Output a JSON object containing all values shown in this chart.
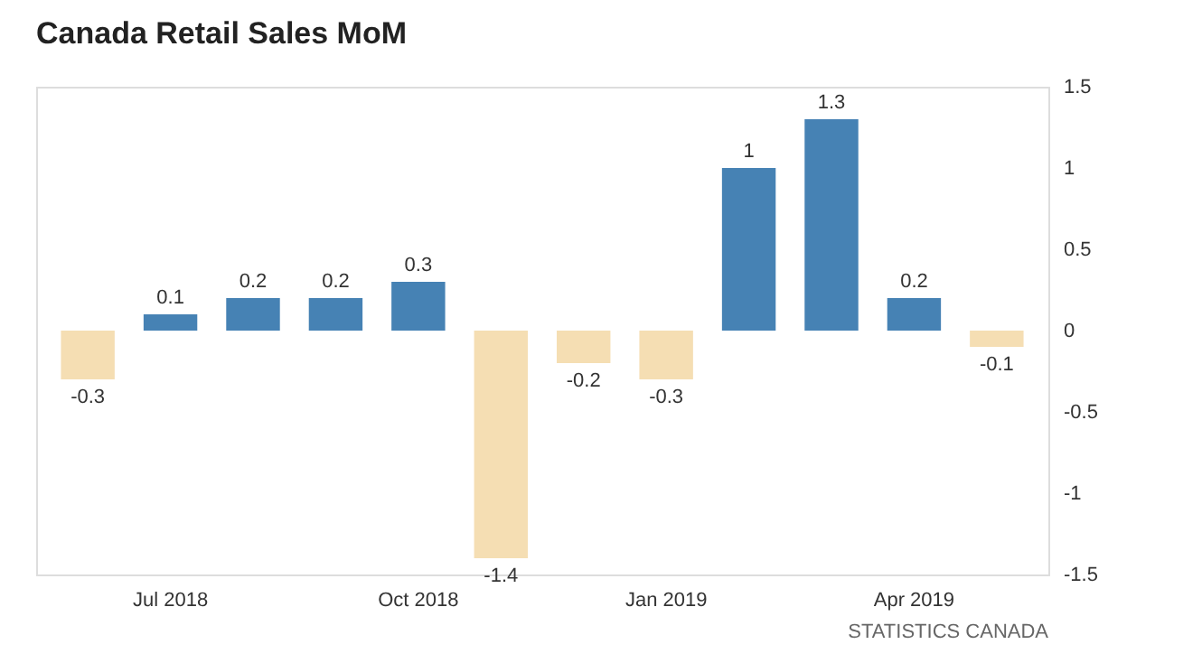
{
  "chart_data": {
    "type": "bar",
    "title": "Canada Retail Sales MoM",
    "categories": [
      null,
      "Jul 2018",
      null,
      null,
      "Oct 2018",
      null,
      null,
      "Jan 2019",
      null,
      null,
      "Apr 2019",
      null
    ],
    "values": [
      -0.3,
      0.1,
      0.2,
      0.2,
      0.3,
      -1.4,
      -0.2,
      -0.3,
      1,
      1.3,
      0.2,
      -0.1
    ],
    "colors": [
      "#f5deb3",
      "#4682b4",
      "#4682b4",
      "#4682b4",
      "#4682b4",
      "#f5deb3",
      "#f5deb3",
      "#f5deb3",
      "#4682b4",
      "#4682b4",
      "#4682b4",
      "#f5deb3"
    ],
    "ylim": [
      -1.5,
      1.5
    ],
    "yticks": [
      -1.5,
      -1,
      -0.5,
      0,
      0.5,
      1,
      1.5
    ],
    "data_labels": true,
    "grid": false,
    "annotations": [
      "STATISTICS CANADA"
    ]
  }
}
